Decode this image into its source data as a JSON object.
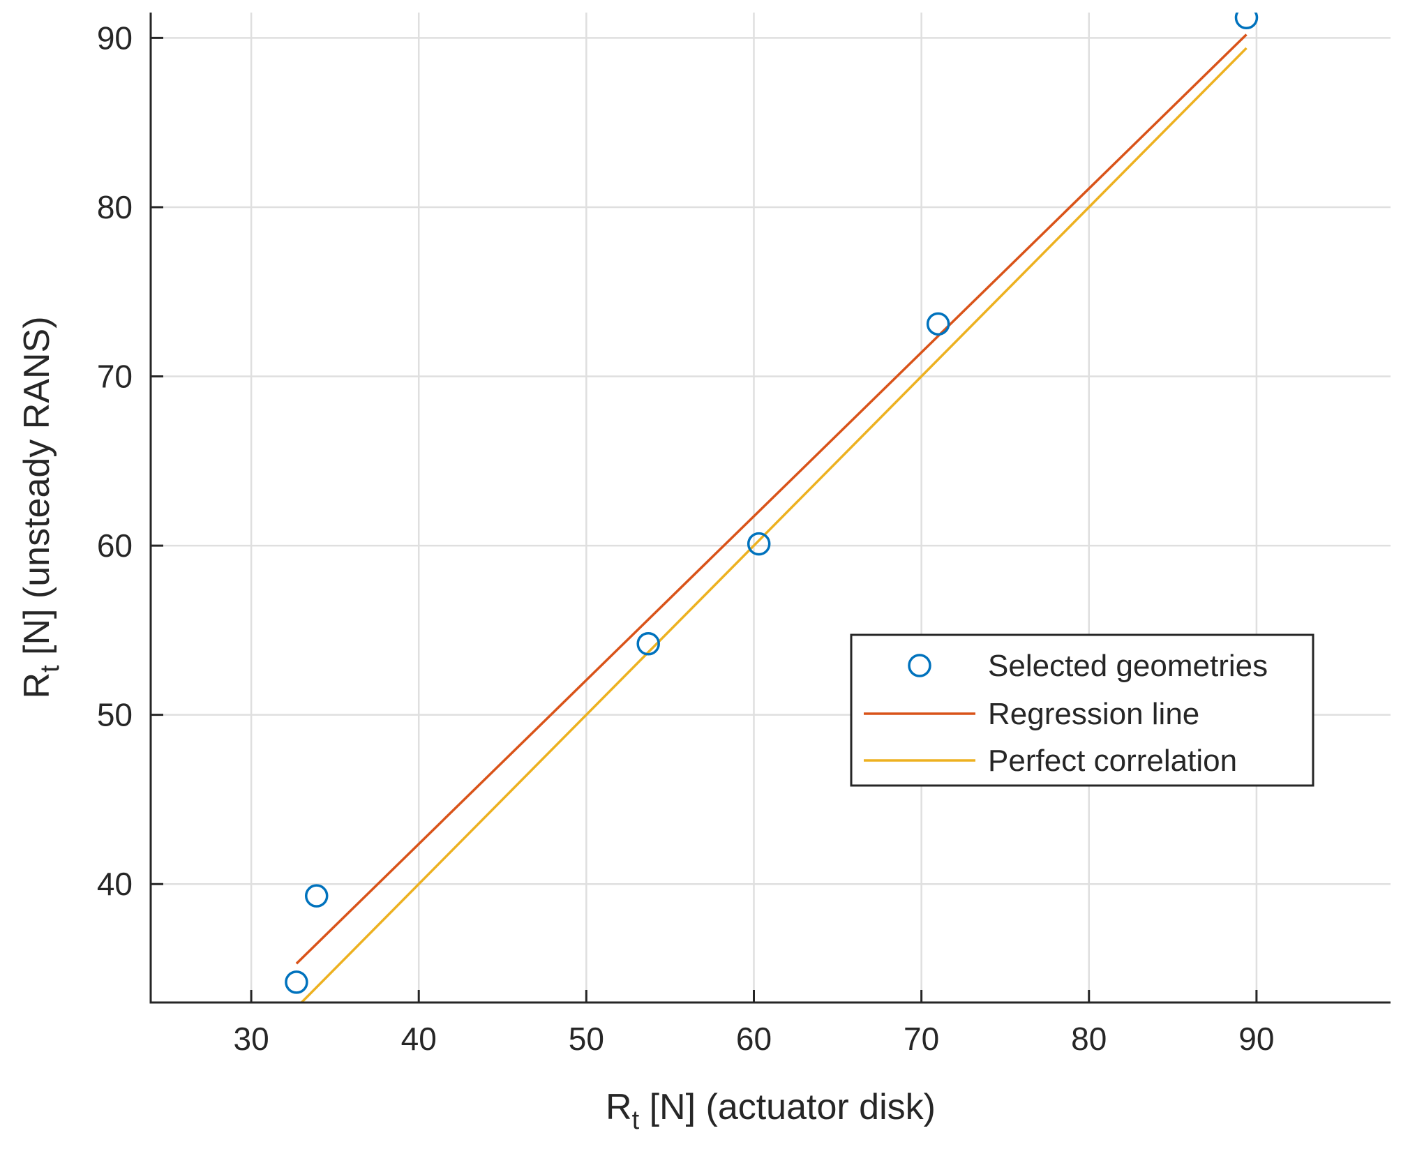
{
  "chart_data": {
    "type": "scatter",
    "title": "",
    "xlabel": {
      "main": "R",
      "sub": "t",
      "rest": " [N] (actuator disk)"
    },
    "ylabel": {
      "main": "R",
      "sub": "t",
      "rest": " [N] (unsteady RANS)"
    },
    "xlim": [
      24,
      98
    ],
    "ylim": [
      33,
      91.5
    ],
    "xticks": [
      30,
      40,
      50,
      60,
      70,
      80,
      90
    ],
    "yticks": [
      40,
      50,
      60,
      70,
      80,
      90
    ],
    "grid": true,
    "legend_position": "center-right",
    "colors": {
      "scatter": "#0072BD",
      "regression": "#D95319",
      "perfect": "#EDB120",
      "axis": "#262626",
      "grid": "#dfdfdf"
    },
    "series": [
      {
        "name": "Selected geometries",
        "kind": "scatter",
        "x": [
          32.7,
          33.9,
          53.7,
          60.3,
          71.0,
          89.4
        ],
        "y": [
          34.2,
          39.3,
          54.2,
          60.1,
          73.1,
          91.2
        ]
      },
      {
        "name": "Regression line",
        "kind": "line",
        "x": [
          32.7,
          89.4
        ],
        "y": [
          35.3,
          90.2
        ]
      },
      {
        "name": "Perfect correlation",
        "kind": "line",
        "x": [
          32.7,
          89.4
        ],
        "y": [
          32.7,
          89.4
        ]
      }
    ]
  }
}
